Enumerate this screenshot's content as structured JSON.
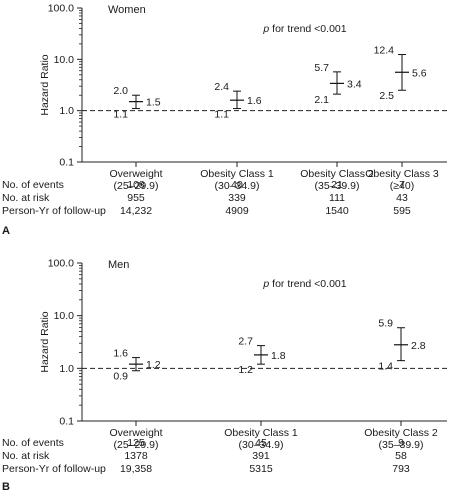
{
  "chart_data": [
    {
      "type": "scatter",
      "panel": "A",
      "group_label": "Women",
      "annotation": "for trend <0.001",
      "annotation_symbol": "p",
      "ylabel": "Hazard Ratio",
      "yscale": "log",
      "ylim": [
        0.1,
        100
      ],
      "yticks": [
        "0.1",
        "1.0",
        "10.0",
        "100.0"
      ],
      "reference_line": 1.0,
      "categories": [
        {
          "name": "Overweight",
          "range": "(25–29.9)"
        },
        {
          "name": "Obesity Class 1",
          "range": "(30–34.9)"
        },
        {
          "name": "Obesity Class 2",
          "range": "(35–39.9)"
        },
        {
          "name": "Obesity Class 3",
          "range": "(≥40)"
        }
      ],
      "points": [
        {
          "hr": 1.5,
          "lo": 1.1,
          "hi": 2.0,
          "hr_label": "1.5",
          "lo_label": "1.1",
          "hi_label": "2.0"
        },
        {
          "hr": 1.6,
          "lo": 1.1,
          "hi": 2.4,
          "hr_label": "1.6",
          "lo_label": "1.1",
          "hi_label": "2.4"
        },
        {
          "hr": 3.4,
          "lo": 2.1,
          "hi": 5.7,
          "hr_label": "3.4",
          "lo_label": "2.1",
          "hi_label": "5.7"
        },
        {
          "hr": 5.6,
          "lo": 2.5,
          "hi": 12.4,
          "hr_label": "5.6",
          "lo_label": "2.5",
          "hi_label": "12.4"
        }
      ],
      "table": [
        {
          "label": "No. of events",
          "values": [
            "108",
            "40",
            "21",
            "7"
          ]
        },
        {
          "label": "No. at risk",
          "values": [
            "955",
            "339",
            "111",
            "43"
          ]
        },
        {
          "label": "Person-Yr of follow-up",
          "values": [
            "14,232",
            "4909",
            "1540",
            "595"
          ]
        }
      ]
    },
    {
      "type": "scatter",
      "panel": "B",
      "group_label": "Men",
      "annotation": "for trend <0.001",
      "annotation_symbol": "p",
      "ylabel": "Hazard Ratio",
      "yscale": "log",
      "ylim": [
        0.1,
        100
      ],
      "yticks": [
        "0.1",
        "1.0",
        "10.0",
        "100.0"
      ],
      "reference_line": 1.0,
      "categories": [
        {
          "name": "Overweight",
          "range": "(25–29.9)"
        },
        {
          "name": "Obesity Class 1",
          "range": "(30–34.9)"
        },
        {
          "name": "Obesity Class 2",
          "range": "(35–39.9)"
        }
      ],
      "points": [
        {
          "hr": 1.2,
          "lo": 0.9,
          "hi": 1.6,
          "hr_label": "1.2",
          "lo_label": "0.9",
          "hi_label": "1.6"
        },
        {
          "hr": 1.8,
          "lo": 1.2,
          "hi": 2.7,
          "hr_label": "1.8",
          "lo_label": "1.2",
          "hi_label": "2.7"
        },
        {
          "hr": 2.8,
          "lo": 1.4,
          "hi": 5.9,
          "hr_label": "2.8",
          "lo_label": "1.4",
          "hi_label": "5.9"
        }
      ],
      "table": [
        {
          "label": "No. of events",
          "values": [
            "125",
            "45",
            "9"
          ]
        },
        {
          "label": "No. at risk",
          "values": [
            "1378",
            "391",
            "58"
          ]
        },
        {
          "label": "Person-Yr of follow-up",
          "values": [
            "19,358",
            "5315",
            "793"
          ]
        }
      ]
    }
  ]
}
